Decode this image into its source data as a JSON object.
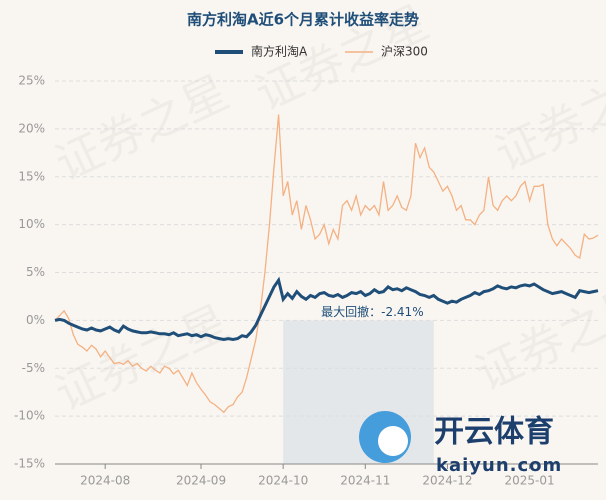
{
  "chart_data": {
    "type": "line",
    "title": "南方利淘A近6个月累计收益率走势",
    "categories": [
      null,
      null,
      null,
      null,
      null,
      null,
      null,
      null,
      null,
      null,
      null,
      "2024-08",
      null,
      null,
      null,
      null,
      null,
      null,
      null,
      null,
      null,
      null,
      null,
      null,
      null,
      null,
      null,
      null,
      null,
      null,
      null,
      null,
      "2024-09",
      null,
      null,
      null,
      null,
      null,
      null,
      null,
      null,
      null,
      null,
      null,
      null,
      null,
      null,
      null,
      null,
      null,
      "2024-10",
      null,
      null,
      null,
      null,
      null,
      null,
      null,
      null,
      null,
      null,
      null,
      null,
      null,
      null,
      null,
      null,
      null,
      "2024-11",
      null,
      null,
      null,
      null,
      null,
      null,
      null,
      null,
      null,
      null,
      null,
      null,
      null,
      null,
      null,
      null,
      null,
      "2024-12",
      null,
      null,
      null,
      null,
      null,
      null,
      null,
      null,
      null,
      null,
      null,
      null,
      null,
      null,
      null,
      null,
      null,
      "2025-01",
      null,
      null,
      null,
      null,
      null,
      null,
      null,
      null,
      null,
      null,
      null,
      null,
      null,
      null,
      null
    ],
    "series": [
      {
        "name": "南方利淘A",
        "color": "#1f4e79",
        "values": [
          0,
          0.1,
          0,
          -0.3,
          -0.5,
          -0.7,
          -0.9,
          -1.0,
          -0.8,
          -1.0,
          -1.1,
          -0.9,
          -0.7,
          -1.0,
          -1.2,
          -0.6,
          -0.9,
          -1.1,
          -1.2,
          -1.3,
          -1.3,
          -1.2,
          -1.3,
          -1.4,
          -1.4,
          -1.5,
          -1.3,
          -1.6,
          -1.5,
          -1.4,
          -1.6,
          -1.5,
          -1.7,
          -1.5,
          -1.6,
          -1.8,
          -1.9,
          -2.0,
          -1.9,
          -2.0,
          -1.9,
          -1.6,
          -1.7,
          -1.2,
          -0.5,
          0.5,
          1.5,
          2.5,
          3.5,
          4.2,
          2.2,
          2.8,
          2.3,
          3.0,
          2.5,
          2.2,
          2.6,
          2.4,
          2.8,
          2.9,
          2.6,
          2.5,
          2.7,
          2.4,
          2.6,
          2.9,
          2.8,
          3.0,
          2.6,
          2.8,
          3.2,
          2.9,
          3.0,
          3.5,
          3.2,
          3.3,
          3.1,
          3.4,
          3.2,
          3.0,
          2.7,
          2.6,
          2.4,
          2.6,
          2.2,
          2.0,
          1.8,
          2.0,
          1.9,
          2.2,
          2.4,
          2.6,
          2.9,
          2.7,
          3.0,
          3.1,
          3.3,
          3.6,
          3.4,
          3.3,
          3.5,
          3.4,
          3.6,
          3.7,
          3.6,
          3.8,
          3.5,
          3.2,
          3.0,
          2.8,
          2.9,
          3.0,
          2.8,
          2.6,
          2.4,
          3.1,
          3.0,
          2.9,
          3.0,
          3.1
        ]
      },
      {
        "name": "沪深300",
        "color": "#f4b183",
        "values": [
          0,
          0.5,
          1.0,
          0.2,
          -1.5,
          -2.5,
          -2.8,
          -3.2,
          -2.6,
          -3.0,
          -3.8,
          -3.2,
          -3.9,
          -4.5,
          -4.4,
          -4.6,
          -4.2,
          -4.8,
          -4.5,
          -5.0,
          -5.3,
          -4.8,
          -5.2,
          -5.5,
          -4.8,
          -5.0,
          -5.6,
          -5.2,
          -6.0,
          -6.8,
          -5.5,
          -6.5,
          -7.2,
          -7.8,
          -8.5,
          -8.8,
          -9.2,
          -9.6,
          -9.0,
          -8.8,
          -8.0,
          -7.5,
          -6.0,
          -4.0,
          -2.0,
          1.0,
          5.0,
          10.0,
          16.0,
          21.5,
          13.0,
          14.5,
          11.0,
          12.5,
          9.5,
          12.0,
          10.5,
          8.5,
          9.0,
          10.0,
          8.0,
          9.5,
          8.5,
          12.0,
          12.5,
          11.5,
          13.0,
          11.0,
          12.0,
          11.5,
          12.0,
          11.0,
          14.5,
          11.5,
          12.0,
          13.0,
          11.8,
          11.5,
          13.0,
          18.5,
          17.0,
          18.0,
          16.0,
          15.5,
          14.5,
          13.5,
          14.0,
          13.0,
          11.5,
          12.0,
          10.5,
          10.5,
          10.0,
          11.0,
          11.5,
          15.0,
          12.0,
          11.5,
          12.5,
          13.0,
          12.5,
          13.0,
          14.0,
          14.5,
          12.5,
          14.0,
          14.0,
          14.2,
          10.0,
          8.5,
          7.8,
          8.5,
          8.0,
          7.5,
          6.8,
          6.5,
          9.0,
          8.5,
          8.6,
          8.9
        ]
      }
    ],
    "ylim": [
      -15,
      25
    ],
    "yticks": [
      {
        "value": -15,
        "label": "-15%"
      },
      {
        "value": -10,
        "label": "-10%"
      },
      {
        "value": -5,
        "label": "-5%"
      },
      {
        "value": 0,
        "label": "0%"
      },
      {
        "value": 5,
        "label": "5%"
      },
      {
        "value": 10,
        "label": "10%"
      },
      {
        "value": 15,
        "label": "15%"
      },
      {
        "value": 20,
        "label": "20%"
      },
      {
        "value": 25,
        "label": "25%"
      }
    ],
    "grid": true,
    "legend": "top",
    "annotation": "最大回撤：-2.41%"
  },
  "watermark": {
    "text": "证券之星",
    "logo": "开云体育",
    "site": "kaiyun.com"
  }
}
